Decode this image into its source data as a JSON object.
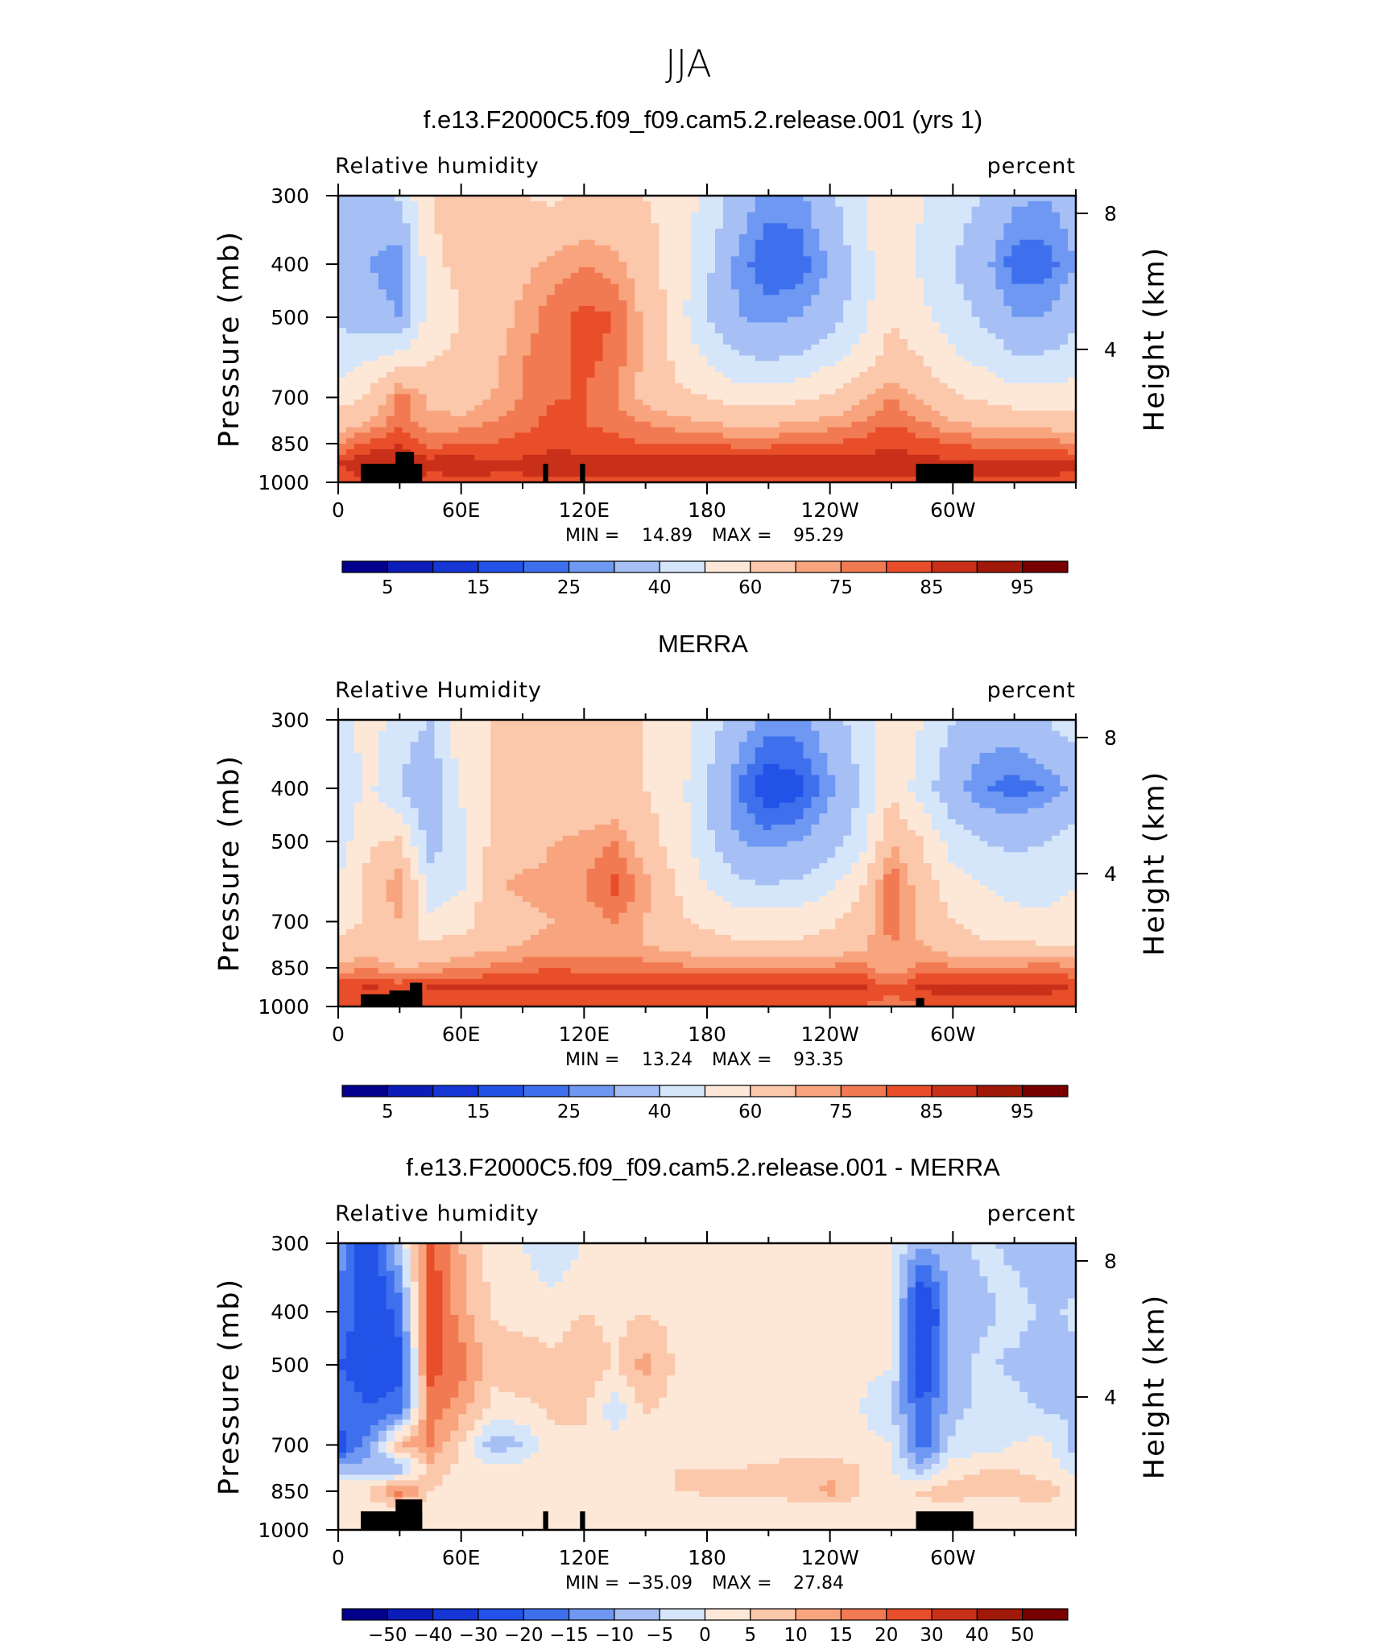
{
  "figure": {
    "title": "JJA"
  },
  "chart_data": [
    {
      "type": "heatmap",
      "title": "f.e13.F2000C5.f09_f09.cam5.2.release.001 (yrs 1)",
      "left_label": "Relative humidity",
      "right_label": "percent",
      "ylabel": "Pressure (mb)",
      "ylabel_right": "Height (km)",
      "x_ticks": [
        "0",
        "60E",
        "120E",
        "180",
        "120W",
        "60W"
      ],
      "y_ticks": [
        "300",
        "400",
        "500",
        "700",
        "850",
        "1000"
      ],
      "y2_ticks": [
        "8",
        "4"
      ],
      "min_label": "MIN =",
      "min_value": "14.89",
      "max_label": "MAX =",
      "max_value": "95.29",
      "colorbar_labels": [
        "5",
        "15",
        "25",
        "40",
        "60",
        "75",
        "85",
        "95"
      ],
      "colorbar_levels": [
        5,
        10,
        15,
        20,
        25,
        30,
        40,
        50,
        60,
        70,
        75,
        80,
        85,
        90,
        95
      ],
      "field": {
        "lon": [
          0,
          15,
          30,
          45,
          60,
          75,
          90,
          105,
          120,
          135,
          150,
          165,
          180,
          195,
          210,
          225,
          240,
          255,
          270,
          285,
          300,
          315,
          330,
          345,
          360
        ],
        "pressure": [
          300,
          400,
          500,
          600,
          700,
          775,
          850,
          925,
          1000
        ],
        "values": [
          [
            40,
            35,
            42,
            60,
            65,
            60,
            60,
            58,
            62,
            62,
            60,
            55,
            48,
            35,
            28,
            28,
            38,
            48,
            60,
            50,
            45,
            40,
            32,
            30,
            35
          ],
          [
            35,
            30,
            25,
            58,
            62,
            62,
            68,
            72,
            75,
            72,
            65,
            55,
            42,
            28,
            20,
            22,
            30,
            45,
            58,
            48,
            40,
            32,
            22,
            22,
            30
          ],
          [
            38,
            35,
            30,
            55,
            60,
            65,
            72,
            78,
            82,
            80,
            68,
            55,
            40,
            30,
            28,
            30,
            35,
            45,
            60,
            52,
            45,
            38,
            30,
            30,
            38
          ],
          [
            45,
            50,
            55,
            60,
            62,
            68,
            75,
            78,
            82,
            78,
            68,
            58,
            50,
            42,
            40,
            42,
            48,
            55,
            65,
            60,
            52,
            48,
            42,
            42,
            45
          ],
          [
            55,
            62,
            78,
            68,
            65,
            70,
            75,
            80,
            80,
            75,
            68,
            62,
            60,
            55,
            55,
            58,
            62,
            68,
            75,
            68,
            62,
            58,
            55,
            55,
            55
          ],
          [
            65,
            70,
            78,
            72,
            72,
            75,
            78,
            82,
            80,
            78,
            75,
            72,
            70,
            68,
            68,
            70,
            72,
            75,
            80,
            75,
            70,
            68,
            66,
            66,
            65
          ],
          [
            75,
            82,
            85,
            78,
            80,
            80,
            82,
            84,
            82,
            82,
            80,
            80,
            80,
            78,
            78,
            80,
            80,
            82,
            84,
            82,
            80,
            78,
            78,
            78,
            75
          ],
          [
            85,
            90,
            88,
            88,
            88,
            86,
            86,
            88,
            88,
            88,
            88,
            88,
            90,
            90,
            90,
            90,
            90,
            88,
            88,
            88,
            86,
            88,
            88,
            88,
            86
          ],
          [
            82,
            85,
            85,
            82,
            84,
            84,
            84,
            84,
            84,
            84,
            84,
            84,
            84,
            84,
            84,
            84,
            84,
            84,
            84,
            84,
            84,
            84,
            84,
            84,
            82
          ]
        ]
      }
    },
    {
      "type": "heatmap",
      "title": "MERRA",
      "left_label": "Relative Humidity",
      "right_label": "percent",
      "ylabel": "Pressure (mb)",
      "ylabel_right": "Height (km)",
      "x_ticks": [
        "0",
        "60E",
        "120E",
        "180",
        "120W",
        "60W"
      ],
      "y_ticks": [
        "300",
        "400",
        "500",
        "700",
        "850",
        "1000"
      ],
      "y2_ticks": [
        "8",
        "4"
      ],
      "min_label": "MIN =",
      "min_value": "13.24",
      "max_label": "MAX =",
      "max_value": "93.35",
      "colorbar_labels": [
        "5",
        "15",
        "25",
        "40",
        "60",
        "75",
        "85",
        "95"
      ],
      "colorbar_levels": [
        5,
        10,
        15,
        20,
        25,
        30,
        40,
        50,
        60,
        70,
        75,
        80,
        85,
        90,
        95
      ],
      "field": {
        "lon": [
          0,
          15,
          30,
          45,
          60,
          75,
          90,
          105,
          120,
          135,
          150,
          165,
          180,
          195,
          210,
          225,
          240,
          255,
          270,
          285,
          300,
          315,
          330,
          345,
          360
        ],
        "pressure": [
          300,
          400,
          500,
          600,
          700,
          775,
          850,
          925,
          1000
        ],
        "values": [
          [
            45,
            55,
            45,
            40,
            58,
            60,
            62,
            62,
            62,
            62,
            60,
            55,
            45,
            35,
            28,
            28,
            35,
            45,
            58,
            50,
            40,
            35,
            35,
            40,
            45
          ],
          [
            42,
            52,
            40,
            30,
            52,
            60,
            62,
            62,
            62,
            62,
            60,
            55,
            40,
            25,
            15,
            18,
            28,
            40,
            58,
            45,
            32,
            25,
            22,
            25,
            32
          ],
          [
            45,
            58,
            62,
            35,
            45,
            62,
            65,
            70,
            72,
            75,
            65,
            55,
            42,
            30,
            28,
            30,
            35,
            45,
            70,
            60,
            45,
            40,
            38,
            40,
            45
          ],
          [
            50,
            65,
            75,
            45,
            48,
            68,
            72,
            72,
            75,
            82,
            72,
            60,
            50,
            42,
            40,
            42,
            48,
            58,
            80,
            65,
            55,
            50,
            45,
            45,
            50
          ],
          [
            55,
            62,
            70,
            52,
            55,
            65,
            68,
            70,
            72,
            75,
            70,
            62,
            58,
            55,
            55,
            55,
            58,
            65,
            78,
            68,
            60,
            55,
            55,
            52,
            55
          ],
          [
            62,
            65,
            60,
            62,
            65,
            68,
            70,
            72,
            72,
            72,
            70,
            68,
            65,
            62,
            62,
            62,
            65,
            68,
            75,
            70,
            65,
            62,
            62,
            60,
            60
          ],
          [
            72,
            75,
            70,
            72,
            75,
            76,
            78,
            80,
            78,
            78,
            78,
            76,
            76,
            76,
            76,
            76,
            76,
            78,
            70,
            78,
            76,
            76,
            76,
            78,
            76
          ],
          [
            84,
            86,
            84,
            86,
            86,
            86,
            86,
            86,
            86,
            86,
            86,
            86,
            86,
            86,
            86,
            86,
            86,
            86,
            80,
            86,
            88,
            88,
            88,
            88,
            84
          ],
          [
            80,
            80,
            80,
            80,
            80,
            80,
            80,
            80,
            80,
            80,
            80,
            80,
            80,
            80,
            80,
            80,
            80,
            80,
            78,
            80,
            80,
            80,
            80,
            80,
            80
          ]
        ]
      }
    },
    {
      "type": "heatmap",
      "title": "f.e13.F2000C5.f09_f09.cam5.2.release.001 - MERRA",
      "left_label": "Relative humidity",
      "right_label": "percent",
      "ylabel": "Pressure (mb)",
      "ylabel_right": "Height (km)",
      "x_ticks": [
        "0",
        "60E",
        "120E",
        "180",
        "120W",
        "60W"
      ],
      "y_ticks": [
        "300",
        "400",
        "500",
        "700",
        "850",
        "1000"
      ],
      "y2_ticks": [
        "8",
        "4"
      ],
      "min_label": "MIN =",
      "min_value": "−35.09",
      "max_label": "MAX =",
      "max_value": "27.84",
      "colorbar_labels": [
        "−50",
        "−40",
        "−30",
        "−20",
        "−15",
        "−10",
        "−5",
        "0",
        "5",
        "10",
        "15",
        "20",
        "30",
        "40",
        "50"
      ],
      "colorbar_levels": [
        -50,
        -40,
        -30,
        -20,
        -15,
        -10,
        -5,
        0,
        5,
        10,
        15,
        20,
        30,
        40,
        50
      ],
      "field": {
        "lon": [
          0,
          15,
          30,
          45,
          60,
          75,
          90,
          105,
          120,
          135,
          150,
          165,
          180,
          195,
          210,
          225,
          240,
          255,
          270,
          285,
          300,
          315,
          330,
          345,
          360
        ],
        "pressure": [
          300,
          400,
          500,
          600,
          700,
          775,
          850,
          925,
          1000
        ],
        "values": [
          [
            -12,
            -28,
            -5,
            22,
            10,
            2,
            0,
            -4,
            0,
            2,
            3,
            2,
            0,
            0,
            0,
            0,
            2,
            2,
            0,
            -10,
            -6,
            -4,
            -6,
            -10,
            -8
          ],
          [
            -15,
            -25,
            -18,
            25,
            12,
            5,
            3,
            2,
            5,
            3,
            5,
            3,
            2,
            3,
            3,
            2,
            2,
            3,
            0,
            -30,
            -8,
            -6,
            -3,
            -6,
            -4
          ],
          [
            -20,
            -25,
            -22,
            22,
            18,
            6,
            8,
            6,
            10,
            5,
            12,
            4,
            2,
            2,
            2,
            2,
            2,
            2,
            0,
            -28,
            -6,
            -4,
            -6,
            -8,
            -6
          ],
          [
            -15,
            -20,
            -18,
            18,
            12,
            4,
            4,
            6,
            5,
            -3,
            6,
            3,
            2,
            2,
            2,
            0,
            2,
            0,
            -5,
            -20,
            -6,
            -4,
            -3,
            -6,
            -5
          ],
          [
            -25,
            -12,
            10,
            15,
            5,
            -8,
            -6,
            4,
            5,
            2,
            2,
            2,
            2,
            2,
            2,
            2,
            2,
            2,
            0,
            -18,
            -4,
            -3,
            0,
            2,
            -8
          ],
          [
            -8,
            -8,
            -10,
            8,
            3,
            2,
            3,
            3,
            5,
            3,
            5,
            5,
            5,
            5,
            6,
            8,
            8,
            5,
            0,
            -8,
            3,
            5,
            5,
            3,
            -2
          ],
          [
            5,
            5,
            18,
            5,
            3,
            2,
            2,
            3,
            3,
            3,
            4,
            5,
            6,
            6,
            6,
            8,
            12,
            5,
            2,
            6,
            8,
            6,
            6,
            8,
            2
          ],
          [
            2,
            2,
            2,
            2,
            1,
            1,
            1,
            2,
            1,
            1,
            2,
            1,
            1,
            1,
            1,
            2,
            2,
            1,
            1,
            3,
            2,
            2,
            3,
            3,
            2
          ],
          [
            2,
            2,
            2,
            2,
            2,
            2,
            2,
            2,
            2,
            2,
            2,
            2,
            2,
            2,
            2,
            2,
            2,
            2,
            2,
            2,
            2,
            2,
            2,
            2,
            2
          ]
        ]
      }
    }
  ],
  "colorbars": {
    "abs_colors": [
      "#02008c",
      "#0c1cb8",
      "#1636d6",
      "#2252e8",
      "#3e70ee",
      "#6e98f2",
      "#a6c0f6",
      "#d6e6fa",
      "#fde8d8",
      "#fbc8ac",
      "#f8a47e",
      "#f27a52",
      "#e94e2a",
      "#c8301a",
      "#a01808",
      "#780000"
    ],
    "diff_colors": [
      "#02008c",
      "#0c1cb8",
      "#1636d6",
      "#2252e8",
      "#3e70ee",
      "#6e98f2",
      "#a6c0f6",
      "#d6e6fa",
      "#fde8d8",
      "#fbc8ac",
      "#f8a47e",
      "#f27a52",
      "#e94e2a",
      "#c8301a",
      "#a01808",
      "#780000"
    ],
    "terrain_color": "#000000"
  }
}
